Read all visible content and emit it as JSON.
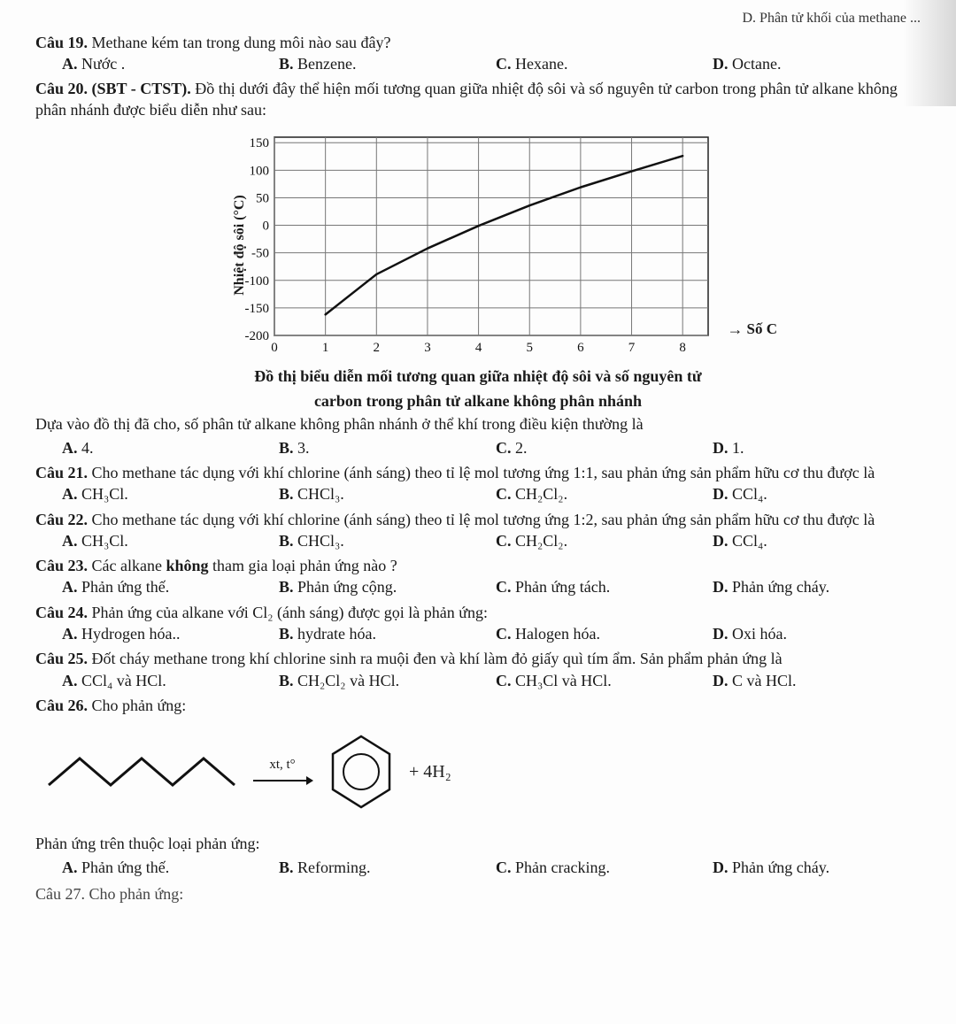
{
  "header_right": "D. Phân tử khối của methane ...",
  "q19": {
    "num": "Câu 19.",
    "stem": " Methane kém tan trong dung môi nào sau đây?",
    "opts": {
      "A": "Nước .",
      "B": "Benzene.",
      "C": "Hexane.",
      "D": "Octane."
    }
  },
  "q20": {
    "num": "Câu 20. (SBT - CTST).",
    "stem": " Đồ thị dưới đây thể hiện mối tương quan giữa nhiệt độ sôi và số nguyên tử carbon trong phân tử alkane không phân nhánh được biểu diễn như sau:",
    "caption1": "Đồ thị biểu diễn mối tương quan giữa nhiệt độ sôi và số nguyên tử",
    "caption2": "carbon trong phân tử alkane không phân nhánh",
    "follow": "Dựa vào đồ thị đã cho, số phân tử alkane không phân nhánh ở thể khí trong điều kiện thường là",
    "opts": {
      "A": "4.",
      "B": "3.",
      "C": "2.",
      "D": "1."
    }
  },
  "chart": {
    "type": "line",
    "x": [
      1,
      2,
      3,
      4,
      5,
      6,
      7,
      8
    ],
    "y": [
      -162,
      -89,
      -42,
      -1,
      36,
      69,
      98,
      126
    ],
    "xlim": [
      0,
      8.5
    ],
    "ylim": [
      -200,
      160
    ],
    "xticks": [
      0,
      1,
      2,
      3,
      4,
      5,
      6,
      7,
      8
    ],
    "yticks": [
      -200,
      -150,
      -100,
      -50,
      0,
      50,
      100,
      150
    ],
    "grid_color": "#777",
    "line_color": "#111",
    "background_color": "#fdfdfd",
    "line_width": 2.5,
    "axis_width": 1.5,
    "tick_fontsize": 15,
    "y_title": "Nhiệt độ sôi (°C)",
    "x_title": "Số C"
  },
  "q21": {
    "num": "Câu 21.",
    "stem": " Cho methane tác dụng với khí chlorine (ánh sáng) theo tỉ lệ mol tương ứng 1:1, sau phản ứng sản phẩm hữu cơ thu được là",
    "opts": {
      "A": "CH₃Cl.",
      "B": "CHCl₃.",
      "C": "CH₂Cl₂.",
      "D": "CCl₄."
    }
  },
  "q22": {
    "num": "Câu 22.",
    "stem": " Cho methane tác dụng với khí chlorine (ánh sáng) theo tỉ lệ mol tương ứng 1:2, sau phản ứng sản phẩm hữu cơ thu được là",
    "opts": {
      "A": "CH₃Cl.",
      "B": "CHCl₃.",
      "C": "CH₂Cl₂.",
      "D": "CCl₄."
    }
  },
  "q23": {
    "num": "Câu 23.",
    "stem": " Các alkane không tham gia loại phản ứng nào ?",
    "bold_word": "không",
    "opts": {
      "A": "Phản ứng thế.",
      "B": "Phản ứng cộng.",
      "C": "Phản ứng tách.",
      "D": "Phản ứng cháy."
    }
  },
  "q24": {
    "num": "Câu 24.",
    "stem": " Phản ứng của alkane với Cl₂ (ánh sáng) được gọi là phản ứng:",
    "opts": {
      "A": "Hydrogen hóa..",
      "B": "hydrate hóa.",
      "C": "Halogen hóa.",
      "D": "Oxi hóa."
    }
  },
  "q25": {
    "num": "Câu 25.",
    "stem": " Đốt cháy methane trong khí chlorine sinh ra muội đen và khí làm đỏ giấy quì tím ẩm. Sản phẩm phản ứng là",
    "opts": {
      "A": "CCl₄ và HCl.",
      "B": "CH₂Cl₂ và HCl.",
      "C": "CH₃Cl và HCl.",
      "D": "C và HCl."
    }
  },
  "q26": {
    "num": "Câu 26.",
    "stem": " Cho phản ứng:",
    "xt": "xt, t°",
    "product_tail": "+ 4H₂",
    "follow": "Phản ứng trên thuộc loại phản ứng:",
    "opts": {
      "A": "Phản ứng thế.",
      "B": "Reforming.",
      "C": "Phản cracking.",
      "D": "Phản ứng cháy."
    }
  },
  "footer": "Câu 27. Cho phản ứng:"
}
